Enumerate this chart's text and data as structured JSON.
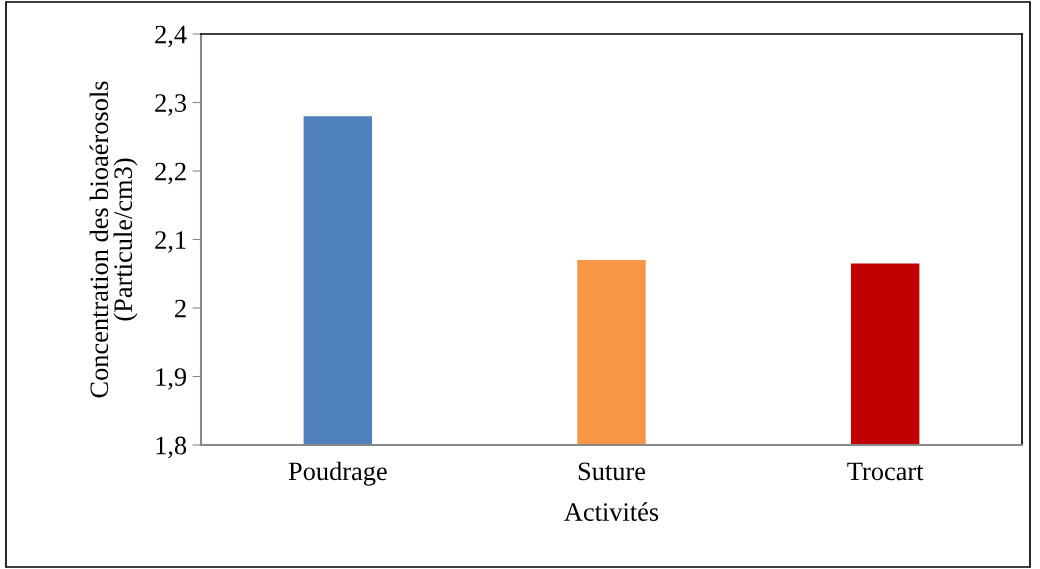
{
  "chart_data": {
    "type": "bar",
    "xlabel": "Activités",
    "ylabel": "Concentration des bioaérosols\n(Particule/cm3)",
    "categories": [
      "Poudrage",
      "Suture",
      "Trocart"
    ],
    "values": [
      2.28,
      2.07,
      2.065
    ],
    "colors": [
      "#4f81bd",
      "#f79646",
      "#c00000"
    ],
    "ylim": [
      1.8,
      2.4
    ],
    "yticks": [
      {
        "value": 1.8,
        "label": "1,8"
      },
      {
        "value": 1.9,
        "label": "1,9"
      },
      {
        "value": 2.0,
        "label": "2"
      },
      {
        "value": 2.1,
        "label": "2,1"
      },
      {
        "value": 2.2,
        "label": "2,2"
      },
      {
        "value": 2.3,
        "label": "2,3"
      },
      {
        "value": 2.4,
        "label": "2,4"
      }
    ],
    "grid": false
  }
}
